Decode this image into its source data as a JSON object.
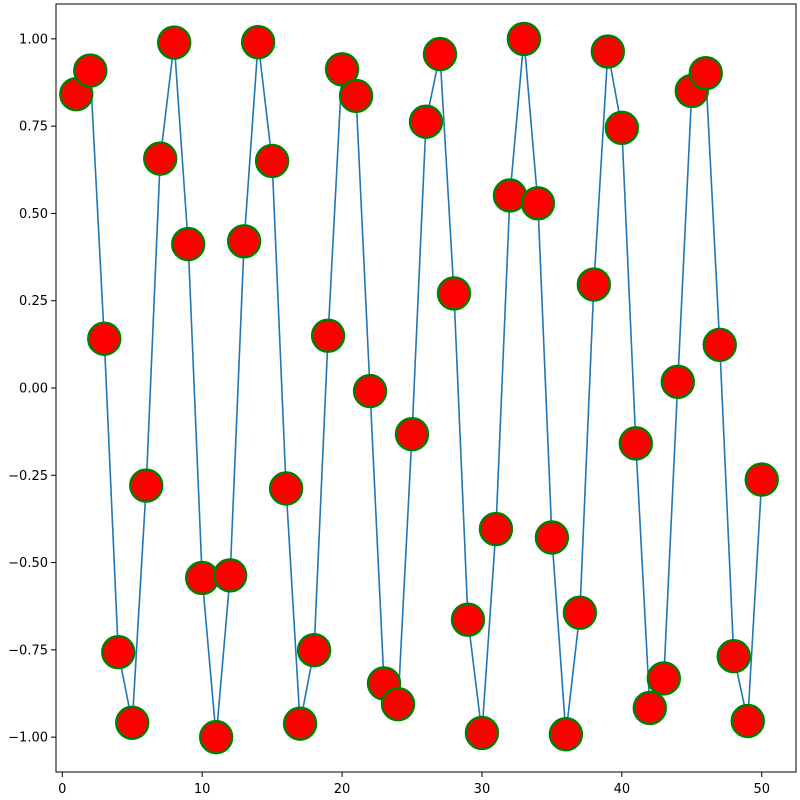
{
  "chart_data": {
    "type": "line",
    "title": "",
    "xlabel": "",
    "ylabel": "",
    "xlim": [
      -0.45,
      52.45
    ],
    "ylim": [
      -1.0999,
      1.0999
    ],
    "x_ticks": [
      0,
      10,
      20,
      30,
      40,
      50
    ],
    "x_tick_labels": [
      "0",
      "10",
      "20",
      "30",
      "40",
      "50"
    ],
    "y_ticks": [
      -1.0,
      -0.75,
      -0.5,
      -0.25,
      0.0,
      0.25,
      0.5,
      0.75,
      1.0
    ],
    "y_tick_labels": [
      "−1.00",
      "−0.75",
      "−0.50",
      "−0.25",
      "0.00",
      "0.25",
      "0.50",
      "0.75",
      "1.00"
    ],
    "grid": false,
    "legend": "none",
    "series": [
      {
        "x": [
          1,
          2,
          3,
          4,
          5,
          6,
          7,
          8,
          9,
          10,
          11,
          12,
          13,
          14,
          15,
          16,
          17,
          18,
          19,
          20,
          21,
          22,
          23,
          24,
          25,
          26,
          27,
          28,
          29,
          30,
          31,
          32,
          33,
          34,
          35,
          36,
          37,
          38,
          39,
          40,
          41,
          42,
          43,
          44,
          45,
          46,
          47,
          48,
          49,
          50
        ],
        "values": [
          0.8415,
          0.9093,
          0.1411,
          -0.7568,
          -0.9589,
          -0.2794,
          0.657,
          0.9894,
          0.4121,
          -0.544,
          -1.0,
          -0.5366,
          0.4202,
          0.9906,
          0.6503,
          -0.2879,
          -0.9614,
          -0.751,
          0.1499,
          0.9129,
          0.8367,
          -0.0089,
          -0.8462,
          -0.9056,
          -0.1324,
          0.7626,
          0.9564,
          0.2709,
          -0.6636,
          -0.988,
          -0.404,
          0.5514,
          0.9999,
          0.5291,
          -0.4282,
          -0.9918,
          -0.6435,
          0.2964,
          0.9638,
          0.7451,
          -0.1586,
          -0.9165,
          -0.8318,
          0.0177,
          0.8509,
          0.9018,
          0.1236,
          -0.7683,
          -0.9538,
          -0.2624
        ],
        "line_color": "#1f77b4",
        "marker_face": "#ff0000",
        "marker_edge": "#008000"
      }
    ]
  }
}
